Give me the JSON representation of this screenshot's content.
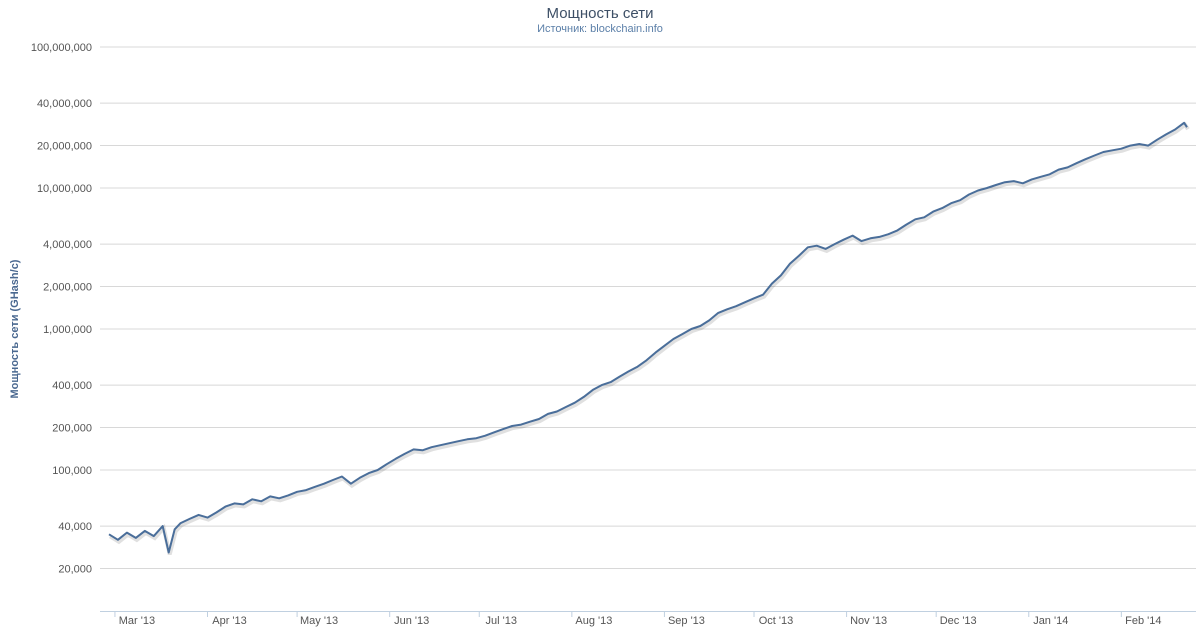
{
  "chart_data": {
    "type": "line",
    "title": "Мощность сети",
    "subtitle": "Источник: blockchain.info",
    "ylabel": "Мощность сети (GHash/с)",
    "xlabel": "",
    "yscale": "log",
    "ylim": [
      10000,
      100000000
    ],
    "grid": true,
    "legend": "none",
    "line_color": "#4a6e9a",
    "yticks": [
      {
        "value": 20000,
        "label": "20,000"
      },
      {
        "value": 40000,
        "label": "40,000"
      },
      {
        "value": 100000,
        "label": "100,000"
      },
      {
        "value": 200000,
        "label": "200,000"
      },
      {
        "value": 400000,
        "label": "400,000"
      },
      {
        "value": 1000000,
        "label": "1,000,000"
      },
      {
        "value": 2000000,
        "label": "2,000,000"
      },
      {
        "value": 4000000,
        "label": "4,000,000"
      },
      {
        "value": 10000000,
        "label": "10,000,000"
      },
      {
        "value": 20000000,
        "label": "20,000,000"
      },
      {
        "value": 40000000,
        "label": "40,000,000"
      },
      {
        "value": 100000000,
        "label": "100,000,000"
      }
    ],
    "xticks": [
      {
        "date": "2013-03-01",
        "label": "Mar '13"
      },
      {
        "date": "2013-04-01",
        "label": "Apr '13"
      },
      {
        "date": "2013-05-01",
        "label": "May '13"
      },
      {
        "date": "2013-06-01",
        "label": "Jun '13"
      },
      {
        "date": "2013-07-01",
        "label": "Jul '13"
      },
      {
        "date": "2013-08-01",
        "label": "Aug '13"
      },
      {
        "date": "2013-09-01",
        "label": "Sep '13"
      },
      {
        "date": "2013-10-01",
        "label": "Oct '13"
      },
      {
        "date": "2013-11-01",
        "label": "Nov '13"
      },
      {
        "date": "2013-12-01",
        "label": "Dec '13"
      },
      {
        "date": "2014-01-01",
        "label": "Jan '14"
      },
      {
        "date": "2014-02-01",
        "label": "Feb '14"
      }
    ],
    "xlim": [
      "2013-02-24",
      "2014-02-26"
    ],
    "series": [
      {
        "x": [
          "2013-02-27",
          "2013-03-02",
          "2013-03-05",
          "2013-03-08",
          "2013-03-11",
          "2013-03-14",
          "2013-03-17",
          "2013-03-19",
          "2013-03-21",
          "2013-03-23",
          "2013-03-26",
          "2013-03-29",
          "2013-04-01",
          "2013-04-04",
          "2013-04-07",
          "2013-04-10",
          "2013-04-13",
          "2013-04-16",
          "2013-04-19",
          "2013-04-22",
          "2013-04-25",
          "2013-04-28",
          "2013-05-01",
          "2013-05-04",
          "2013-05-07",
          "2013-05-10",
          "2013-05-13",
          "2013-05-16",
          "2013-05-19",
          "2013-05-22",
          "2013-05-25",
          "2013-05-28",
          "2013-05-31",
          "2013-06-03",
          "2013-06-06",
          "2013-06-09",
          "2013-06-12",
          "2013-06-15",
          "2013-06-18",
          "2013-06-21",
          "2013-06-24",
          "2013-06-27",
          "2013-06-30",
          "2013-07-03",
          "2013-07-06",
          "2013-07-09",
          "2013-07-12",
          "2013-07-15",
          "2013-07-18",
          "2013-07-21",
          "2013-07-24",
          "2013-07-27",
          "2013-07-30",
          "2013-08-02",
          "2013-08-05",
          "2013-08-08",
          "2013-08-11",
          "2013-08-14",
          "2013-08-17",
          "2013-08-20",
          "2013-08-23",
          "2013-08-26",
          "2013-08-29",
          "2013-09-01",
          "2013-09-04",
          "2013-09-07",
          "2013-09-10",
          "2013-09-13",
          "2013-09-16",
          "2013-09-19",
          "2013-09-22",
          "2013-09-25",
          "2013-09-28",
          "2013-10-01",
          "2013-10-04",
          "2013-10-07",
          "2013-10-10",
          "2013-10-13",
          "2013-10-16",
          "2013-10-19",
          "2013-10-22",
          "2013-10-25",
          "2013-10-28",
          "2013-10-31",
          "2013-11-03",
          "2013-11-06",
          "2013-11-09",
          "2013-11-12",
          "2013-11-15",
          "2013-11-18",
          "2013-11-21",
          "2013-11-24",
          "2013-11-27",
          "2013-11-30",
          "2013-12-03",
          "2013-12-06",
          "2013-12-09",
          "2013-12-12",
          "2013-12-15",
          "2013-12-18",
          "2013-12-21",
          "2013-12-24",
          "2013-12-27",
          "2013-12-30",
          "2014-01-02",
          "2014-01-05",
          "2014-01-08",
          "2014-01-11",
          "2014-01-14",
          "2014-01-17",
          "2014-01-20",
          "2014-01-23",
          "2014-01-26",
          "2014-01-29",
          "2014-02-01",
          "2014-02-04",
          "2014-02-07",
          "2014-02-10",
          "2014-02-13",
          "2014-02-16",
          "2014-02-19",
          "2014-02-22",
          "2014-02-23"
        ],
        "y": [
          35000,
          32000,
          36000,
          33000,
          37000,
          34000,
          40000,
          26000,
          38000,
          42000,
          45000,
          48000,
          46000,
          50000,
          55000,
          58000,
          57000,
          62000,
          60000,
          65000,
          63000,
          66000,
          70000,
          72000,
          76000,
          80000,
          85000,
          90000,
          80000,
          88000,
          95000,
          100000,
          110000,
          120000,
          130000,
          140000,
          138000,
          145000,
          150000,
          155000,
          160000,
          165000,
          168000,
          175000,
          185000,
          195000,
          205000,
          210000,
          220000,
          230000,
          250000,
          260000,
          280000,
          300000,
          330000,
          370000,
          400000,
          420000,
          460000,
          500000,
          540000,
          600000,
          680000,
          760000,
          850000,
          920000,
          1000000,
          1050000,
          1150000,
          1300000,
          1380000,
          1450000,
          1550000,
          1650000,
          1750000,
          2100000,
          2400000,
          2900000,
          3300000,
          3800000,
          3900000,
          3700000,
          4000000,
          4300000,
          4600000,
          4200000,
          4400000,
          4500000,
          4700000,
          5000000,
          5500000,
          6000000,
          6200000,
          6800000,
          7200000,
          7800000,
          8200000,
          9000000,
          9600000,
          10000000,
          10500000,
          11000000,
          11200000,
          10800000,
          11500000,
          12000000,
          12500000,
          13500000,
          14000000,
          15000000,
          16000000,
          17000000,
          18000000,
          18500000,
          19000000,
          20000000,
          20500000,
          20000000,
          22000000,
          24000000,
          26000000,
          29000000,
          27000000
        ]
      }
    ]
  }
}
